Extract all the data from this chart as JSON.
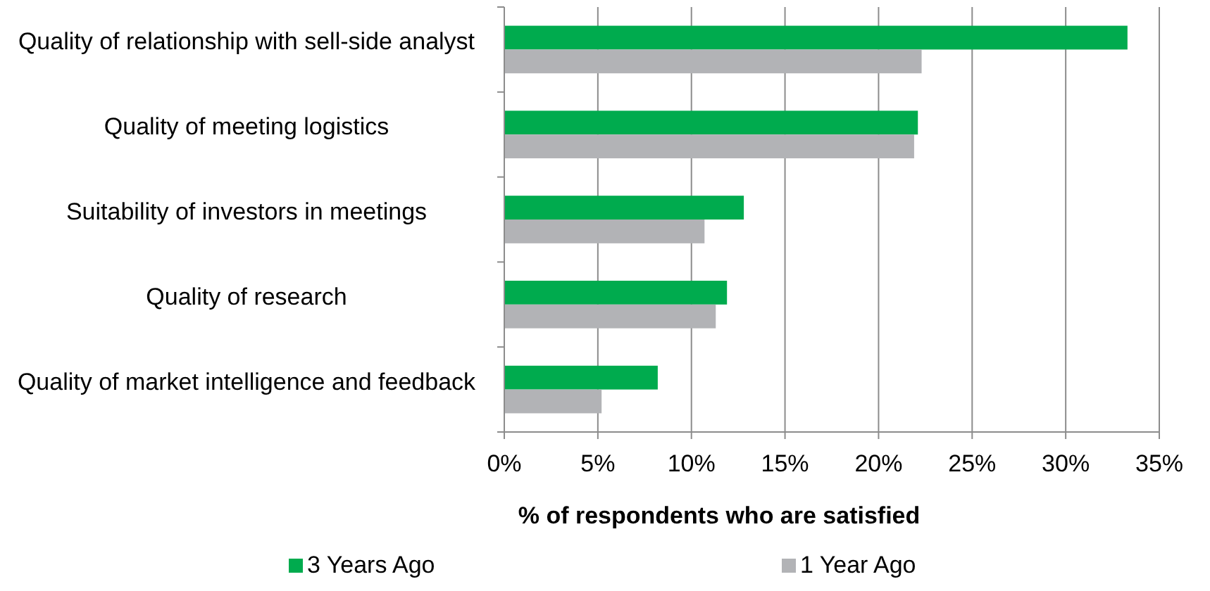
{
  "chart_data": {
    "type": "bar",
    "orientation": "horizontal",
    "xlabel": "% of respondents who are satisfied",
    "categories": [
      "Quality of relationship with sell-side analyst",
      "Quality of meeting logistics",
      "Suitability of investors in meetings",
      "Quality of research",
      "Quality of market intelligence and feedback"
    ],
    "series": [
      {
        "name": "3 Years Ago",
        "color": "#00ab4e",
        "values": [
          33.3,
          22.1,
          12.8,
          11.9,
          8.2
        ]
      },
      {
        "name": "1 Year Ago",
        "color": "#b2b3b6",
        "values": [
          22.3,
          21.9,
          10.7,
          11.3,
          5.2
        ]
      }
    ],
    "xlim": [
      0,
      35
    ],
    "xticks": [
      {
        "value": 0,
        "label": "0%"
      },
      {
        "value": 5,
        "label": "5%"
      },
      {
        "value": 10,
        "label": "10%"
      },
      {
        "value": 15,
        "label": "15%"
      },
      {
        "value": 20,
        "label": "20%"
      },
      {
        "value": 25,
        "label": "25%"
      },
      {
        "value": 30,
        "label": "30%"
      },
      {
        "value": 35,
        "label": "35%"
      }
    ],
    "grid": "x",
    "legend": "bottom"
  }
}
